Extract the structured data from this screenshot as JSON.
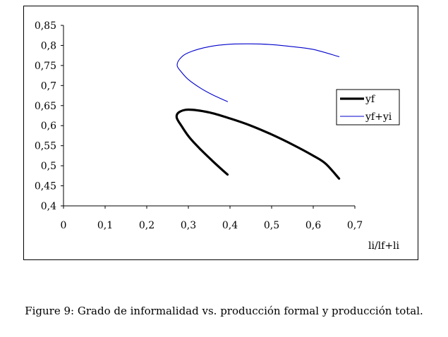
{
  "chart_data": {
    "type": "line",
    "title": "",
    "xlabel": "li/lf+li",
    "ylabel": "",
    "xlim": [
      0,
      0.7
    ],
    "ylim": [
      0.4,
      0.85
    ],
    "x_ticks": [
      "0",
      "0,1",
      "0,2",
      "0,3",
      "0,4",
      "0,5",
      "0,6",
      "0,7"
    ],
    "y_ticks": [
      "0,4",
      "0,45",
      "0,5",
      "0,55",
      "0,6",
      "0,65",
      "0,7",
      "0,75",
      "0,8",
      "0,85"
    ],
    "grid": false,
    "legend_position": "right",
    "series": [
      {
        "name": "yf",
        "color": "#000000",
        "points": [
          [
            0.394,
            0.478
          ],
          [
            0.36,
            0.51
          ],
          [
            0.33,
            0.54
          ],
          [
            0.303,
            0.57
          ],
          [
            0.283,
            0.6
          ],
          [
            0.272,
            0.62
          ],
          [
            0.277,
            0.633
          ],
          [
            0.3,
            0.64
          ],
          [
            0.35,
            0.633
          ],
          [
            0.4,
            0.618
          ],
          [
            0.45,
            0.6
          ],
          [
            0.5,
            0.578
          ],
          [
            0.55,
            0.553
          ],
          [
            0.6,
            0.525
          ],
          [
            0.63,
            0.505
          ],
          [
            0.662,
            0.468
          ]
        ]
      },
      {
        "name": "yf+yi",
        "color": "#0000cc",
        "points": [
          [
            0.394,
            0.66
          ],
          [
            0.36,
            0.676
          ],
          [
            0.33,
            0.693
          ],
          [
            0.3,
            0.715
          ],
          [
            0.283,
            0.734
          ],
          [
            0.273,
            0.75
          ],
          [
            0.28,
            0.767
          ],
          [
            0.3,
            0.782
          ],
          [
            0.35,
            0.797
          ],
          [
            0.4,
            0.803
          ],
          [
            0.45,
            0.804
          ],
          [
            0.5,
            0.802
          ],
          [
            0.55,
            0.797
          ],
          [
            0.6,
            0.79
          ],
          [
            0.662,
            0.772
          ]
        ]
      }
    ]
  },
  "caption": "Figure 9: Grado de informalidad vs. producción formal y producción total."
}
